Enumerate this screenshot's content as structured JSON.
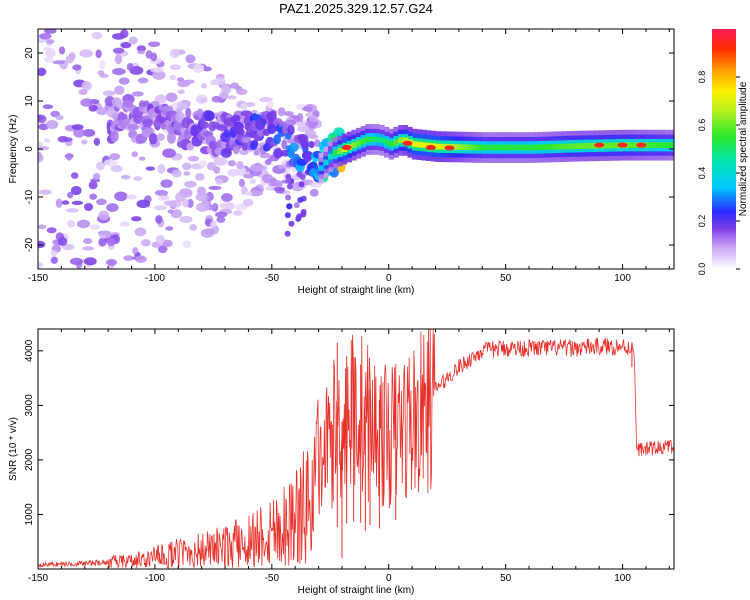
{
  "title": "PAZ1.2025.329.12.57.G24",
  "chart_data": [
    {
      "type": "heatmap",
      "panel": "spectrogram",
      "xlabel": "Height of straight line (km)",
      "ylabel": "Frequency (Hz)",
      "xlim": [
        -150,
        122
      ],
      "ylim": [
        -25,
        25
      ],
      "xticks": [
        -150,
        -100,
        -50,
        0,
        50,
        100
      ],
      "yticks": [
        -20,
        -10,
        0,
        10,
        20
      ],
      "colorbar": {
        "label": "Normalized spectral amplitude",
        "range": [
          0,
          1
        ],
        "ticks": [
          0.0,
          0.2,
          0.4,
          0.6,
          0.8
        ]
      },
      "ridge": {
        "x": [
          -118,
          -100,
          -85,
          -70,
          -60,
          -50,
          -42,
          -35,
          -30,
          -25,
          -20,
          -15,
          -10,
          -5,
          0,
          5,
          10,
          20,
          40,
          60,
          80,
          100,
          122
        ],
        "freq": [
          6,
          5,
          4,
          3,
          4,
          3,
          0,
          -2,
          -4,
          -1,
          0,
          1,
          2,
          2,
          1,
          2,
          1,
          0.5,
          0.3,
          0.3,
          0.6,
          0.8,
          0.8
        ],
        "amplitude": [
          0.12,
          0.12,
          0.14,
          0.15,
          0.18,
          0.2,
          0.22,
          0.25,
          0.28,
          0.4,
          0.6,
          0.5,
          0.45,
          0.4,
          0.45,
          0.55,
          0.6,
          0.6,
          0.45,
          0.45,
          0.5,
          0.5,
          0.45
        ]
      },
      "peaks": [
        {
          "x": -18,
          "freq": 0.3,
          "amplitude": 0.95
        },
        {
          "x": 8,
          "freq": 1.2,
          "amplitude": 0.95
        },
        {
          "x": 18,
          "freq": 0.3,
          "amplitude": 0.95
        },
        {
          "x": 26,
          "freq": 0.2,
          "amplitude": 0.95
        },
        {
          "x": 90,
          "freq": 0.8,
          "amplitude": 0.95
        },
        {
          "x": 100,
          "freq": 0.8,
          "amplitude": 0.95
        },
        {
          "x": 108,
          "freq": 0.8,
          "amplitude": 0.95
        }
      ]
    },
    {
      "type": "line",
      "panel": "snr",
      "xlabel": "Height of straight line (km)",
      "ylabel": "SNR (10 * v/v)",
      "xlim": [
        -150,
        122
      ],
      "ylim": [
        0,
        4400
      ],
      "xticks": [
        -150,
        -100,
        -50,
        0,
        50,
        100
      ],
      "yticks": [
        1000,
        2000,
        3000,
        4000
      ],
      "series": [
        {
          "name": "SNR",
          "color": "#e8302a",
          "x": [
            -150,
            -130,
            -110,
            -100,
            -90,
            -80,
            -70,
            -60,
            -50,
            -45,
            -40,
            -35,
            -30,
            -25,
            -20,
            -15,
            -10,
            -5,
            0,
            5,
            10,
            15,
            20,
            25,
            30,
            40,
            50,
            60,
            70,
            80,
            90,
            100,
            105,
            106,
            110,
            122
          ],
          "values": [
            80,
            100,
            150,
            220,
            300,
            360,
            420,
            560,
            760,
            850,
            1000,
            1200,
            1800,
            2400,
            2700,
            2900,
            2800,
            2500,
            2400,
            2600,
            2700,
            2850,
            3300,
            3500,
            3700,
            4000,
            4050,
            4050,
            4050,
            4050,
            4080,
            4080,
            4050,
            2200,
            2200,
            2250
          ]
        }
      ],
      "spikes": [
        {
          "x": -22,
          "value": 4150
        },
        {
          "x": -18,
          "value": 3900
        },
        {
          "x": -15,
          "value": 3600
        },
        {
          "x": -12,
          "value": 3750
        },
        {
          "x": -8,
          "value": 3300
        },
        {
          "x": -4,
          "value": 3100
        }
      ],
      "dips": [
        {
          "x": -20,
          "value": 200
        },
        {
          "x": -10,
          "value": 700
        },
        {
          "x": 3,
          "value": 900
        },
        {
          "x": 104,
          "value": 3700
        }
      ]
    }
  ]
}
